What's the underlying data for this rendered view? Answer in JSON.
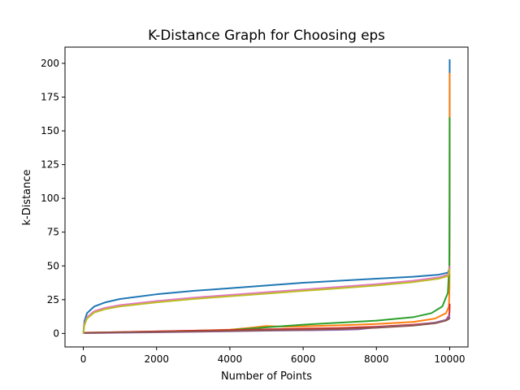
{
  "chart_data": {
    "type": "line",
    "title": "K-Distance Graph for Choosing eps",
    "xlabel": "Number of Points",
    "ylabel": "k-Distance",
    "xlim": [
      -500,
      10500
    ],
    "ylim": [
      -10,
      212
    ],
    "xticks": [
      0,
      2000,
      4000,
      6000,
      8000,
      10000
    ],
    "xtick_labels": [
      "0",
      "2000",
      "4000",
      "6000",
      "8000",
      "10000"
    ],
    "yticks": [
      0,
      25,
      50,
      75,
      100,
      125,
      150,
      175,
      200
    ],
    "ytick_labels": [
      "0",
      "25",
      "50",
      "75",
      "100",
      "125",
      "150",
      "175",
      "200"
    ],
    "grid": false,
    "legend": "none",
    "series": [
      {
        "color": "#1f77b4",
        "points": [
          [
            0,
            0
          ],
          [
            30,
            9
          ],
          [
            100,
            15
          ],
          [
            300,
            20
          ],
          [
            600,
            23
          ],
          [
            1000,
            25.5
          ],
          [
            2000,
            29
          ],
          [
            3000,
            31.5
          ],
          [
            4000,
            33.5
          ],
          [
            5000,
            35.5
          ],
          [
            6000,
            37.5
          ],
          [
            7000,
            39
          ],
          [
            8000,
            40.5
          ],
          [
            9000,
            42
          ],
          [
            9700,
            43.5
          ],
          [
            9950,
            45
          ],
          [
            9990,
            47
          ],
          [
            9998,
            80
          ],
          [
            10000,
            203
          ]
        ]
      },
      {
        "color": "#ff7f0e",
        "points": [
          [
            0,
            0.5
          ],
          [
            1000,
            1
          ],
          [
            2000,
            1.5
          ],
          [
            3000,
            2
          ],
          [
            4000,
            2.8
          ],
          [
            4500,
            4
          ],
          [
            5000,
            5.5
          ],
          [
            5500,
            5
          ],
          [
            6000,
            5.3
          ],
          [
            7000,
            6
          ],
          [
            8000,
            7
          ],
          [
            9000,
            8.5
          ],
          [
            9600,
            11
          ],
          [
            9900,
            15
          ],
          [
            9980,
            20
          ],
          [
            9995,
            35
          ],
          [
            10000,
            193
          ]
        ]
      },
      {
        "color": "#2ca02c",
        "points": [
          [
            0,
            0.3
          ],
          [
            1000,
            0.7
          ],
          [
            2000,
            1.2
          ],
          [
            3000,
            1.8
          ],
          [
            4000,
            2.5
          ],
          [
            5000,
            4.5
          ],
          [
            6000,
            6.5
          ],
          [
            7000,
            8
          ],
          [
            8000,
            9.5
          ],
          [
            9000,
            12
          ],
          [
            9500,
            15
          ],
          [
            9800,
            20
          ],
          [
            9950,
            30
          ],
          [
            9990,
            50
          ],
          [
            9998,
            100
          ],
          [
            10000,
            160
          ]
        ]
      },
      {
        "color": "#d62728",
        "points": [
          [
            0,
            0.5
          ],
          [
            1000,
            1
          ],
          [
            2000,
            1.5
          ],
          [
            3000,
            2
          ],
          [
            4000,
            2.5
          ],
          [
            5000,
            3
          ],
          [
            6000,
            3.5
          ],
          [
            7000,
            4
          ],
          [
            7500,
            4.5
          ],
          [
            8000,
            5
          ],
          [
            9000,
            6.5
          ],
          [
            9600,
            8
          ],
          [
            9900,
            10
          ],
          [
            9980,
            13
          ],
          [
            9995,
            16
          ],
          [
            10000,
            22
          ]
        ]
      },
      {
        "color": "#9467bd",
        "points": [
          [
            0,
            0.2
          ],
          [
            1000,
            0.5
          ],
          [
            2000,
            0.8
          ],
          [
            3000,
            1.2
          ],
          [
            4000,
            1.6
          ],
          [
            5000,
            2
          ],
          [
            6000,
            2.3
          ],
          [
            7000,
            2.6
          ],
          [
            7500,
            3
          ],
          [
            8000,
            4.5
          ],
          [
            9000,
            6
          ],
          [
            9600,
            8
          ],
          [
            9900,
            10
          ],
          [
            9980,
            12
          ],
          [
            10000,
            14
          ]
        ]
      },
      {
        "color": "#8c564b",
        "points": [
          [
            0,
            0.4
          ],
          [
            1000,
            0.8
          ],
          [
            2000,
            1.1
          ],
          [
            3000,
            1.5
          ],
          [
            4000,
            1.9
          ],
          [
            5000,
            2.3
          ],
          [
            6000,
            2.7
          ],
          [
            7000,
            3.2
          ],
          [
            8000,
            4.2
          ],
          [
            9000,
            5.8
          ],
          [
            9600,
            7.5
          ],
          [
            9900,
            9.5
          ],
          [
            9990,
            11
          ],
          [
            10000,
            12
          ]
        ]
      },
      {
        "color": "#e377c2",
        "points": [
          [
            0,
            0
          ],
          [
            30,
            7
          ],
          [
            100,
            12
          ],
          [
            300,
            16.5
          ],
          [
            600,
            19
          ],
          [
            1000,
            21
          ],
          [
            2000,
            24
          ],
          [
            3000,
            26.5
          ],
          [
            4000,
            28.5
          ],
          [
            5000,
            30.5
          ],
          [
            6000,
            32.5
          ],
          [
            7000,
            34.5
          ],
          [
            8000,
            36.5
          ],
          [
            9000,
            39
          ],
          [
            9700,
            41.5
          ],
          [
            9950,
            43.5
          ],
          [
            9990,
            46
          ],
          [
            10000,
            50
          ]
        ]
      },
      {
        "color": "#bcbd22",
        "points": [
          [
            0,
            0
          ],
          [
            30,
            6
          ],
          [
            100,
            11
          ],
          [
            300,
            15.5
          ],
          [
            600,
            18
          ],
          [
            1000,
            20
          ],
          [
            2000,
            23
          ],
          [
            3000,
            25.5
          ],
          [
            4000,
            27.5
          ],
          [
            5000,
            29.5
          ],
          [
            6000,
            31.5
          ],
          [
            7000,
            33.5
          ],
          [
            8000,
            35.5
          ],
          [
            9000,
            38
          ],
          [
            9700,
            40.5
          ],
          [
            9950,
            42.5
          ],
          [
            9990,
            45
          ],
          [
            10000,
            48
          ]
        ]
      }
    ]
  }
}
